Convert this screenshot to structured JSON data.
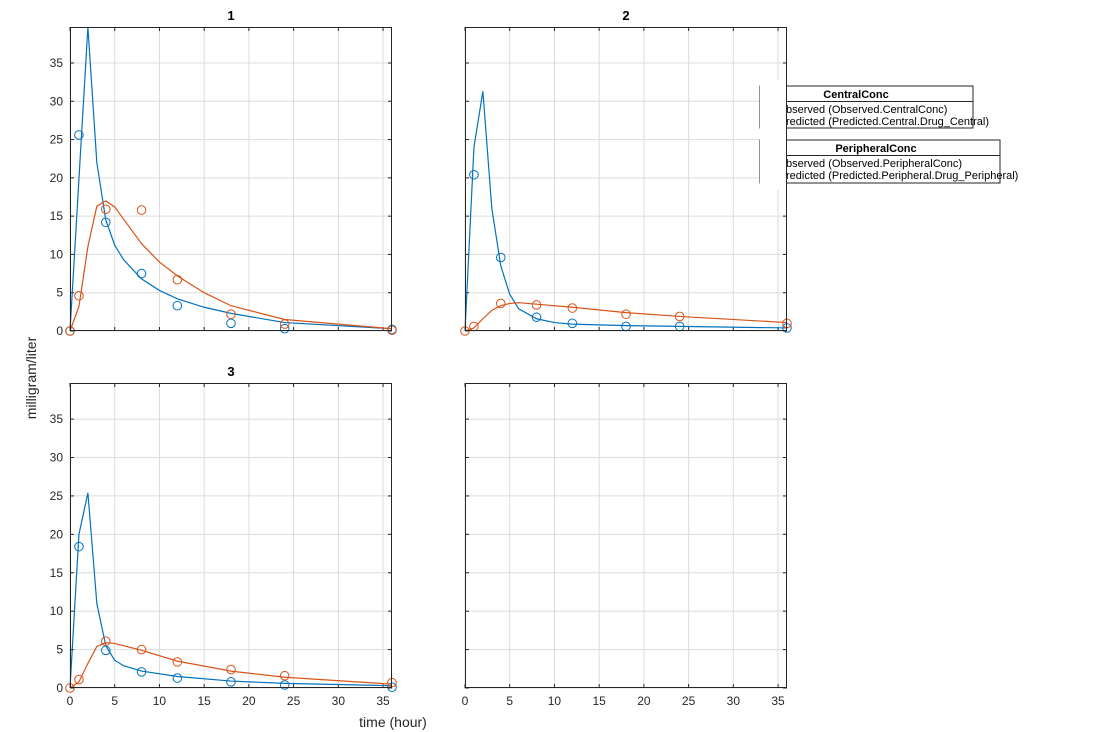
{
  "chart_data": [
    {
      "type": "line",
      "title": "1",
      "xlim": [
        0,
        36
      ],
      "ylim": [
        0,
        39.7
      ],
      "xticks": [
        0,
        5,
        10,
        15,
        20,
        25,
        30,
        35
      ],
      "yticks": [
        0,
        5,
        10,
        15,
        20,
        25,
        30,
        35
      ],
      "show_xticklabels": false,
      "show_yticklabels": true,
      "grid": true,
      "series": [
        {
          "kind": "markers",
          "color": "#0072BD",
          "x": [
            0,
            1,
            4,
            8,
            12,
            18,
            24,
            36
          ],
          "y": [
            0,
            25.6,
            14.2,
            7.5,
            3.3,
            1.0,
            0.3,
            0.2
          ]
        },
        {
          "kind": "line",
          "color": "#0072BD",
          "x": [
            0,
            2,
            3,
            4,
            5,
            6,
            8,
            10,
            12,
            15,
            18,
            24,
            36
          ],
          "y": [
            0,
            39.7,
            22,
            14.5,
            11.2,
            9.3,
            6.8,
            5.3,
            4.2,
            3.1,
            2.3,
            1.1,
            0.3
          ]
        },
        {
          "kind": "markers",
          "color": "#D95319",
          "x": [
            0,
            1,
            4,
            8,
            12,
            18,
            24,
            36
          ],
          "y": [
            0,
            4.6,
            15.9,
            15.8,
            6.7,
            2.2,
            0.9,
            0.1
          ]
        },
        {
          "kind": "line",
          "color": "#D95319",
          "x": [
            0,
            1,
            2,
            3,
            4,
            5,
            6,
            8,
            10,
            12,
            15,
            18,
            24,
            36
          ],
          "y": [
            0,
            3.2,
            11,
            16.3,
            17,
            16.2,
            14.6,
            11.4,
            9,
            7.2,
            5,
            3.3,
            1.5,
            0.3
          ]
        }
      ]
    },
    {
      "type": "line",
      "title": "2",
      "xlim": [
        0,
        36
      ],
      "ylim": [
        0,
        39.7
      ],
      "xticks": [
        0,
        5,
        10,
        15,
        20,
        25,
        30,
        35
      ],
      "yticks": [
        0,
        5,
        10,
        15,
        20,
        25,
        30,
        35
      ],
      "show_xticklabels": false,
      "show_yticklabels": false,
      "grid": true,
      "series": [
        {
          "kind": "markers",
          "color": "#0072BD",
          "x": [
            1,
            4,
            8,
            12,
            18,
            24,
            36
          ],
          "y": [
            20.4,
            9.6,
            1.8,
            1.0,
            0.6,
            0.6,
            0.4
          ]
        },
        {
          "kind": "line",
          "color": "#0072BD",
          "x": [
            0,
            1,
            2,
            3,
            4,
            5,
            6,
            8,
            10,
            12,
            18,
            24,
            36
          ],
          "y": [
            0,
            24,
            31.3,
            16,
            8.5,
            4.8,
            2.9,
            1.6,
            1.1,
            0.9,
            0.7,
            0.6,
            0.4
          ]
        },
        {
          "kind": "markers",
          "color": "#D95319",
          "x": [
            0,
            1,
            4,
            8,
            12,
            18,
            24,
            36
          ],
          "y": [
            0,
            0.6,
            3.6,
            3.4,
            3.0,
            2.2,
            1.9,
            1.0
          ]
        },
        {
          "kind": "line",
          "color": "#D95319",
          "x": [
            0,
            1,
            2,
            3,
            4,
            5,
            6,
            8,
            12,
            18,
            24,
            36
          ],
          "y": [
            0,
            0.4,
            1.6,
            2.7,
            3.3,
            3.6,
            3.7,
            3.5,
            3.1,
            2.4,
            1.9,
            1.1
          ]
        }
      ]
    },
    {
      "type": "line",
      "title": "3",
      "xlim": [
        0,
        36
      ],
      "ylim": [
        0,
        39.7
      ],
      "xticks": [
        0,
        5,
        10,
        15,
        20,
        25,
        30,
        35
      ],
      "yticks": [
        0,
        5,
        10,
        15,
        20,
        25,
        30,
        35
      ],
      "show_xticklabels": true,
      "show_yticklabels": true,
      "grid": true,
      "series": [
        {
          "kind": "markers",
          "color": "#0072BD",
          "x": [
            1,
            4,
            8,
            12,
            18,
            24,
            36
          ],
          "y": [
            18.4,
            4.9,
            2.1,
            1.3,
            0.8,
            0.4,
            0.1
          ]
        },
        {
          "kind": "line",
          "color": "#0072BD",
          "x": [
            0,
            1,
            2,
            3,
            4,
            5,
            6,
            8,
            12,
            18,
            24,
            36
          ],
          "y": [
            0,
            20,
            25.4,
            11,
            5.5,
            3.6,
            2.9,
            2.2,
            1.5,
            0.9,
            0.6,
            0.3
          ]
        },
        {
          "kind": "markers",
          "color": "#D95319",
          "x": [
            0,
            1,
            4,
            8,
            12,
            18,
            24,
            36
          ],
          "y": [
            0,
            1.1,
            6.1,
            5.0,
            3.4,
            2.4,
            1.6,
            0.7
          ]
        },
        {
          "kind": "line",
          "color": "#D95319",
          "x": [
            0,
            1,
            2,
            3,
            4,
            5,
            8,
            12,
            18,
            24,
            36
          ],
          "y": [
            0,
            0.8,
            3.2,
            5.4,
            5.9,
            5.8,
            4.9,
            3.5,
            2.2,
            1.4,
            0.5
          ]
        }
      ]
    },
    {
      "type": "line",
      "title": "",
      "xlim": [
        0,
        36
      ],
      "ylim": [
        0,
        39.7
      ],
      "xticks": [
        0,
        5,
        10,
        15,
        20,
        25,
        30,
        35
      ],
      "yticks": [
        0,
        5,
        10,
        15,
        20,
        25,
        30,
        35
      ],
      "show_xticklabels": true,
      "show_yticklabels": false,
      "grid": true,
      "series": []
    }
  ],
  "labels": {
    "ylabel": "milligram/liter",
    "xlabel": "time (hour)"
  },
  "legend": [
    {
      "title": "CentralConc",
      "entries": [
        "bserved (Observed.CentralConc)",
        "redicted (Predicted.Central.Drug_Central)"
      ]
    },
    {
      "title": "PeripheralConc",
      "entries": [
        "bserved (Observed.PeripheralConc)",
        "redicted (Predicted.Peripheral.Drug_Peripheral)"
      ]
    }
  ],
  "colors": {
    "central": "#0072BD",
    "peripheral": "#D95319"
  }
}
